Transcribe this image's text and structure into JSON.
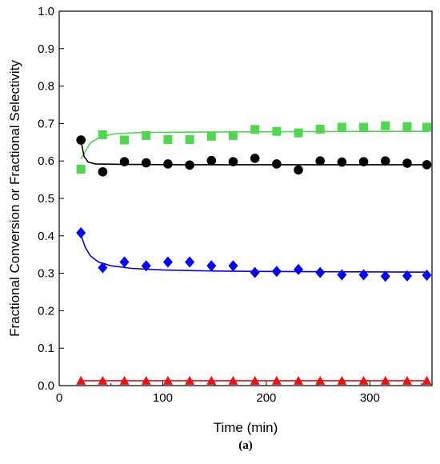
{
  "chart_data": {
    "type": "scatter",
    "title": "",
    "caption": "(a)",
    "xlabel": "Time (min)",
    "ylabel": "Fractional Conversion or Fractional Selectivity",
    "xlim": [
      0,
      360
    ],
    "ylim": [
      0,
      1
    ],
    "xticks": [
      0,
      100,
      200,
      300
    ],
    "yticks": [
      "0.0",
      "0.1",
      "0.2",
      "0.3",
      "0.4",
      "0.5",
      "0.6",
      "0.7",
      "0.8",
      "0.9",
      "1.0"
    ],
    "grid": false,
    "legend": "none",
    "series": [
      {
        "marker": "square",
        "color": "#4fd84f",
        "points": [
          [
            21,
            0.578
          ],
          [
            42,
            0.67
          ],
          [
            63,
            0.656
          ],
          [
            84,
            0.668
          ],
          [
            105,
            0.657
          ],
          [
            126,
            0.657
          ],
          [
            147,
            0.666
          ],
          [
            168,
            0.668
          ],
          [
            189,
            0.684
          ],
          [
            210,
            0.679
          ],
          [
            231,
            0.675
          ],
          [
            252,
            0.685
          ],
          [
            273,
            0.69
          ],
          [
            294,
            0.69
          ],
          [
            315,
            0.694
          ],
          [
            336,
            0.692
          ],
          [
            355,
            0.69
          ]
        ],
        "fit": [
          [
            21,
            0.605
          ],
          [
            30,
            0.648
          ],
          [
            40,
            0.665
          ],
          [
            55,
            0.673
          ],
          [
            80,
            0.676
          ],
          [
            120,
            0.677
          ],
          [
            200,
            0.678
          ],
          [
            300,
            0.679
          ],
          [
            357,
            0.679
          ]
        ]
      },
      {
        "marker": "circle",
        "color": "#000000",
        "points": [
          [
            21,
            0.656
          ],
          [
            42,
            0.571
          ],
          [
            63,
            0.598
          ],
          [
            84,
            0.595
          ],
          [
            105,
            0.592
          ],
          [
            126,
            0.589
          ],
          [
            147,
            0.601
          ],
          [
            168,
            0.598
          ],
          [
            189,
            0.607
          ],
          [
            210,
            0.592
          ],
          [
            231,
            0.576
          ],
          [
            252,
            0.6
          ],
          [
            273,
            0.597
          ],
          [
            294,
            0.598
          ],
          [
            315,
            0.6
          ],
          [
            336,
            0.594
          ],
          [
            355,
            0.59
          ]
        ],
        "fit": [
          [
            21,
            0.655
          ],
          [
            24,
            0.612
          ],
          [
            28,
            0.597
          ],
          [
            35,
            0.592
          ],
          [
            60,
            0.591
          ],
          [
            120,
            0.59
          ],
          [
            200,
            0.59
          ],
          [
            300,
            0.59
          ],
          [
            357,
            0.59
          ]
        ]
      },
      {
        "marker": "diamond",
        "color": "#0000ff",
        "points": [
          [
            21,
            0.408
          ],
          [
            42,
            0.315
          ],
          [
            63,
            0.33
          ],
          [
            84,
            0.32
          ],
          [
            105,
            0.33
          ],
          [
            126,
            0.33
          ],
          [
            147,
            0.32
          ],
          [
            168,
            0.32
          ],
          [
            189,
            0.302
          ],
          [
            210,
            0.305
          ],
          [
            231,
            0.31
          ],
          [
            252,
            0.302
          ],
          [
            273,
            0.296
          ],
          [
            294,
            0.296
          ],
          [
            315,
            0.292
          ],
          [
            336,
            0.293
          ],
          [
            355,
            0.295
          ]
        ],
        "fit": [
          [
            21,
            0.402
          ],
          [
            25,
            0.37
          ],
          [
            30,
            0.347
          ],
          [
            38,
            0.33
          ],
          [
            50,
            0.32
          ],
          [
            70,
            0.313
          ],
          [
            100,
            0.309
          ],
          [
            150,
            0.306
          ],
          [
            200,
            0.305
          ],
          [
            260,
            0.304
          ],
          [
            357,
            0.303
          ]
        ]
      },
      {
        "marker": "triangle",
        "color": "#ee1111",
        "points": [
          [
            21,
            0.013
          ],
          [
            42,
            0.013
          ],
          [
            63,
            0.013
          ],
          [
            84,
            0.013
          ],
          [
            105,
            0.013
          ],
          [
            126,
            0.013
          ],
          [
            147,
            0.013
          ],
          [
            168,
            0.013
          ],
          [
            189,
            0.013
          ],
          [
            210,
            0.013
          ],
          [
            231,
            0.013
          ],
          [
            252,
            0.013
          ],
          [
            273,
            0.013
          ],
          [
            294,
            0.013
          ],
          [
            315,
            0.013
          ],
          [
            336,
            0.013
          ],
          [
            355,
            0.013
          ]
        ],
        "fit": [
          [
            21,
            0.013
          ],
          [
            357,
            0.013
          ]
        ]
      }
    ]
  }
}
